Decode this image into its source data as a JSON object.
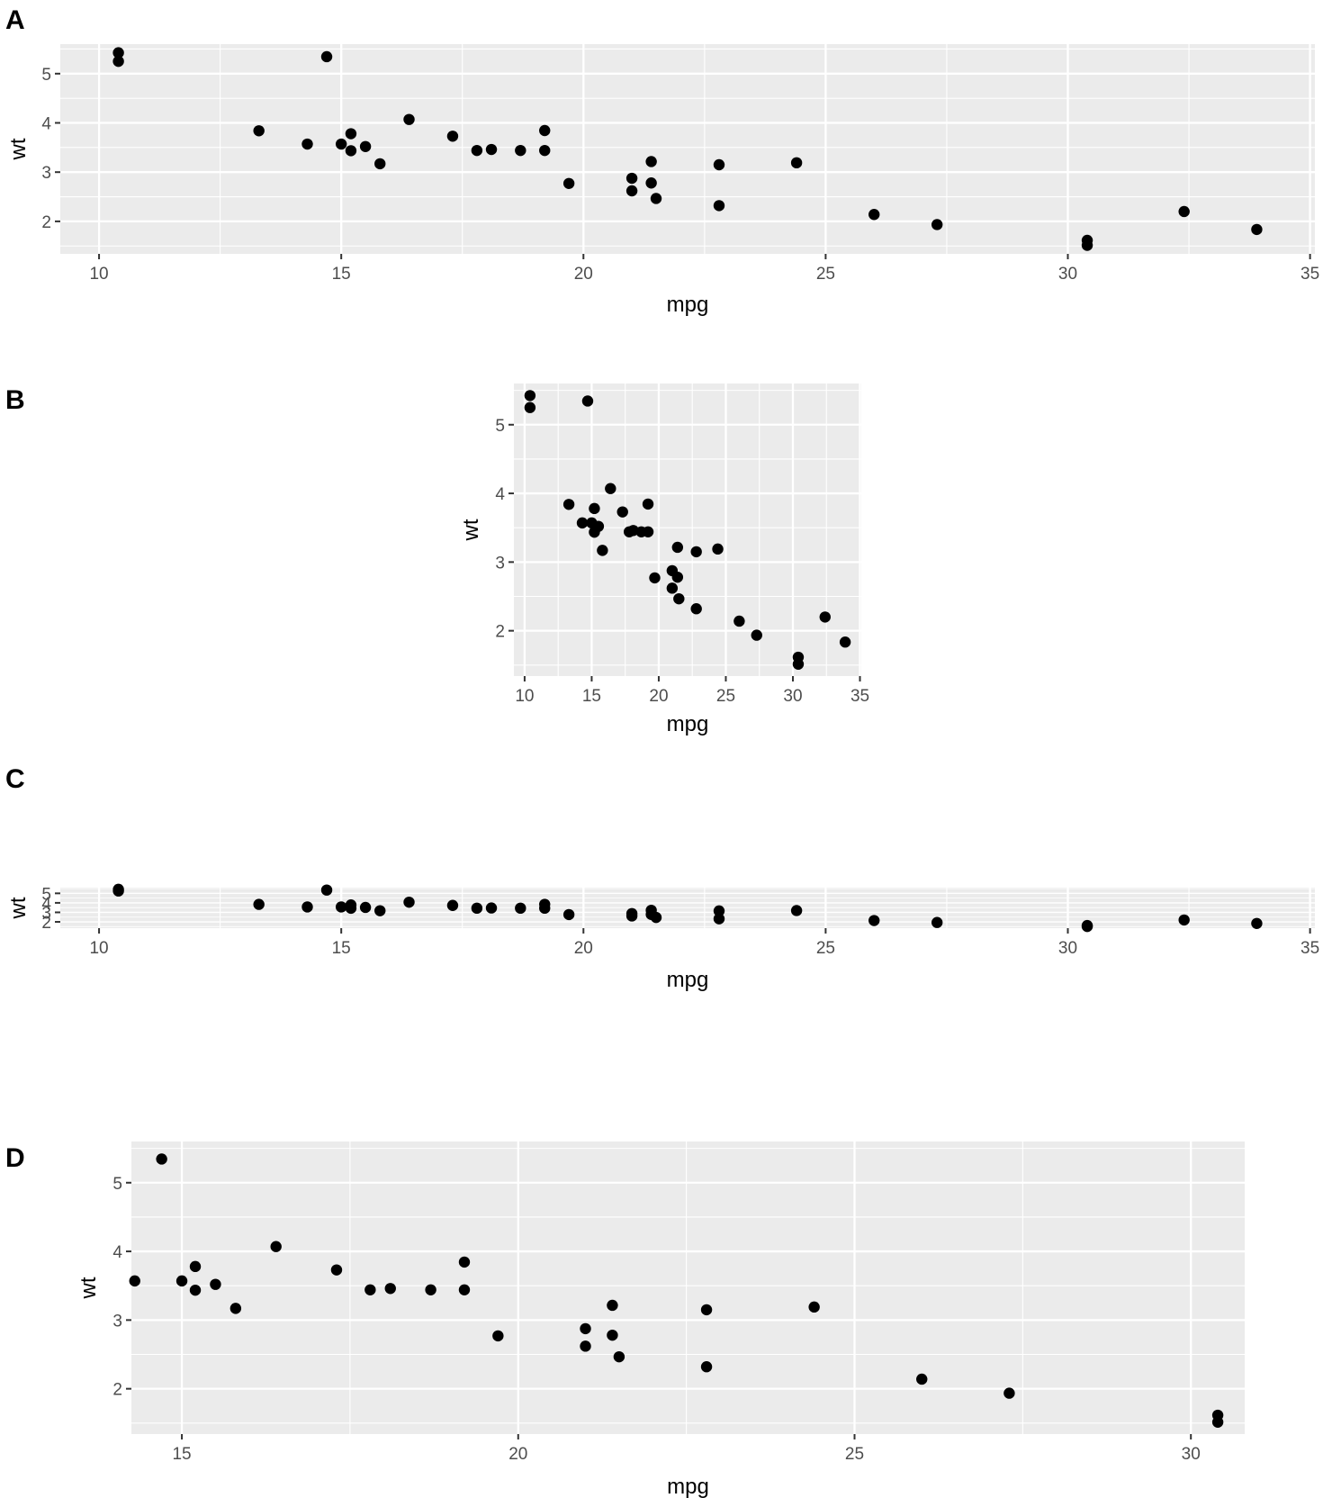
{
  "chart_data": [
    {
      "panel": "A",
      "type": "scatter",
      "xlabel": "mpg",
      "ylabel": "wt",
      "xlim": [
        9.2,
        35.1
      ],
      "ylim": [
        1.34,
        5.6
      ],
      "xticks": [
        10,
        15,
        20,
        25,
        30,
        35
      ],
      "yticks": [
        2,
        3,
        4,
        5
      ],
      "grid": true,
      "point_color": "#000000",
      "panel_color": "#ebebeb",
      "points": [
        [
          21.0,
          2.62
        ],
        [
          21.0,
          2.875
        ],
        [
          22.8,
          2.32
        ],
        [
          21.4,
          3.215
        ],
        [
          18.7,
          3.44
        ],
        [
          18.1,
          3.46
        ],
        [
          14.3,
          3.57
        ],
        [
          24.4,
          3.19
        ],
        [
          22.8,
          3.15
        ],
        [
          19.2,
          3.44
        ],
        [
          17.8,
          3.44
        ],
        [
          16.4,
          4.07
        ],
        [
          17.3,
          3.73
        ],
        [
          15.2,
          3.78
        ],
        [
          10.4,
          5.25
        ],
        [
          10.4,
          5.424
        ],
        [
          14.7,
          5.345
        ],
        [
          32.4,
          2.2
        ],
        [
          30.4,
          1.615
        ],
        [
          33.9,
          1.835
        ],
        [
          21.5,
          2.465
        ],
        [
          15.5,
          3.52
        ],
        [
          15.2,
          3.435
        ],
        [
          13.3,
          3.84
        ],
        [
          19.2,
          3.845
        ],
        [
          27.3,
          1.935
        ],
        [
          26.0,
          2.14
        ],
        [
          30.4,
          1.513
        ],
        [
          15.8,
          3.17
        ],
        [
          19.7,
          2.77
        ],
        [
          15.0,
          3.57
        ],
        [
          21.4,
          2.78
        ]
      ]
    },
    {
      "panel": "B",
      "type": "scatter",
      "xlabel": "mpg",
      "ylabel": "wt",
      "xlim": [
        9.2,
        35.1
      ],
      "ylim": [
        1.34,
        5.6
      ],
      "xticks": [
        10,
        15,
        20,
        25,
        30,
        35
      ],
      "yticks": [
        2,
        3,
        4,
        5
      ],
      "grid": true,
      "point_color": "#000000",
      "panel_color": "#ebebeb",
      "points": [
        [
          21.0,
          2.62
        ],
        [
          21.0,
          2.875
        ],
        [
          22.8,
          2.32
        ],
        [
          21.4,
          3.215
        ],
        [
          18.7,
          3.44
        ],
        [
          18.1,
          3.46
        ],
        [
          14.3,
          3.57
        ],
        [
          24.4,
          3.19
        ],
        [
          22.8,
          3.15
        ],
        [
          19.2,
          3.44
        ],
        [
          17.8,
          3.44
        ],
        [
          16.4,
          4.07
        ],
        [
          17.3,
          3.73
        ],
        [
          15.2,
          3.78
        ],
        [
          10.4,
          5.25
        ],
        [
          10.4,
          5.424
        ],
        [
          14.7,
          5.345
        ],
        [
          32.4,
          2.2
        ],
        [
          30.4,
          1.615
        ],
        [
          33.9,
          1.835
        ],
        [
          21.5,
          2.465
        ],
        [
          15.5,
          3.52
        ],
        [
          15.2,
          3.435
        ],
        [
          13.3,
          3.84
        ],
        [
          19.2,
          3.845
        ],
        [
          27.3,
          1.935
        ],
        [
          26.0,
          2.14
        ],
        [
          30.4,
          1.513
        ],
        [
          15.8,
          3.17
        ],
        [
          19.7,
          2.77
        ],
        [
          15.0,
          3.57
        ],
        [
          21.4,
          2.78
        ]
      ]
    },
    {
      "panel": "C",
      "type": "scatter",
      "xlabel": "mpg",
      "ylabel": "wt",
      "xlim": [
        9.2,
        35.1
      ],
      "ylim": [
        1.34,
        5.6
      ],
      "xticks": [
        10,
        15,
        20,
        25,
        30,
        35
      ],
      "yticks": [
        2,
        3,
        4,
        5
      ],
      "grid": true,
      "point_color": "#000000",
      "panel_color": "#ebebeb",
      "points": [
        [
          21.0,
          2.62
        ],
        [
          21.0,
          2.875
        ],
        [
          22.8,
          2.32
        ],
        [
          21.4,
          3.215
        ],
        [
          18.7,
          3.44
        ],
        [
          18.1,
          3.46
        ],
        [
          14.3,
          3.57
        ],
        [
          24.4,
          3.19
        ],
        [
          22.8,
          3.15
        ],
        [
          19.2,
          3.44
        ],
        [
          17.8,
          3.44
        ],
        [
          16.4,
          4.07
        ],
        [
          17.3,
          3.73
        ],
        [
          15.2,
          3.78
        ],
        [
          10.4,
          5.25
        ],
        [
          10.4,
          5.424
        ],
        [
          14.7,
          5.345
        ],
        [
          32.4,
          2.2
        ],
        [
          30.4,
          1.615
        ],
        [
          33.9,
          1.835
        ],
        [
          21.5,
          2.465
        ],
        [
          15.5,
          3.52
        ],
        [
          15.2,
          3.435
        ],
        [
          13.3,
          3.84
        ],
        [
          19.2,
          3.845
        ],
        [
          27.3,
          1.935
        ],
        [
          26.0,
          2.14
        ],
        [
          30.4,
          1.513
        ],
        [
          15.8,
          3.17
        ],
        [
          19.7,
          2.77
        ],
        [
          15.0,
          3.57
        ],
        [
          21.4,
          2.78
        ]
      ]
    },
    {
      "panel": "D",
      "type": "scatter",
      "xlabel": "mpg",
      "ylabel": "wt",
      "xlim": [
        14.25,
        30.8
      ],
      "ylim": [
        1.34,
        5.6
      ],
      "xticks": [
        15,
        20,
        25,
        30
      ],
      "yticks": [
        2,
        3,
        4,
        5
      ],
      "grid": true,
      "point_color": "#000000",
      "panel_color": "#ebebeb",
      "points": [
        [
          21.0,
          2.62
        ],
        [
          21.0,
          2.875
        ],
        [
          22.8,
          2.32
        ],
        [
          21.4,
          3.215
        ],
        [
          18.7,
          3.44
        ],
        [
          18.1,
          3.46
        ],
        [
          14.3,
          3.57
        ],
        [
          24.4,
          3.19
        ],
        [
          22.8,
          3.15
        ],
        [
          19.2,
          3.44
        ],
        [
          17.8,
          3.44
        ],
        [
          16.4,
          4.07
        ],
        [
          17.3,
          3.73
        ],
        [
          15.2,
          3.78
        ],
        [
          14.7,
          5.345
        ],
        [
          30.4,
          1.615
        ],
        [
          21.5,
          2.465
        ],
        [
          15.5,
          3.52
        ],
        [
          15.2,
          3.435
        ],
        [
          19.2,
          3.845
        ],
        [
          27.3,
          1.935
        ],
        [
          26.0,
          2.14
        ],
        [
          30.4,
          1.513
        ],
        [
          15.8,
          3.17
        ],
        [
          19.7,
          2.77
        ],
        [
          15.0,
          3.57
        ],
        [
          21.4,
          2.78
        ]
      ]
    }
  ]
}
